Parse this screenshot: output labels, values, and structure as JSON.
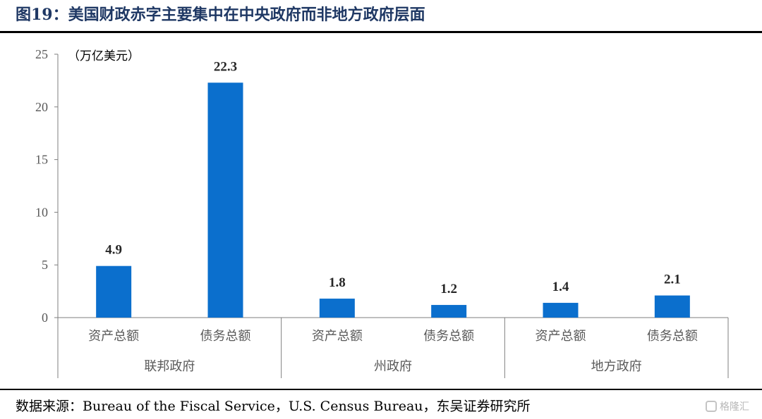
{
  "figure": {
    "title": "图19：美国财政赤字主要集中在中央政府而非地方政府层面",
    "source": "数据来源：Bureau of the Fiscal Service，U.S. Census Bureau，东吴证券研究所",
    "watermark": "格隆汇"
  },
  "chart_data": {
    "type": "bar",
    "unit_label": "（万亿美元）",
    "ylim": [
      0,
      25
    ],
    "yticks": [
      "0",
      "5",
      "10",
      "15",
      "20",
      "25"
    ],
    "groups": [
      {
        "label": "联邦政府",
        "categories": [
          "资产总额",
          "债务总额"
        ],
        "values": [
          4.9,
          22.3
        ],
        "value_labels": [
          "4.9",
          "22.3"
        ]
      },
      {
        "label": "州政府",
        "categories": [
          "资产总额",
          "债务总额"
        ],
        "values": [
          1.8,
          1.2
        ],
        "value_labels": [
          "1.8",
          "1.2"
        ]
      },
      {
        "label": "地方政府",
        "categories": [
          "资产总额",
          "债务总额"
        ],
        "values": [
          1.4,
          2.1
        ],
        "value_labels": [
          "1.4",
          "2.1"
        ]
      }
    ],
    "bar_color": "#0b6fcd",
    "legend": "none",
    "grid": false
  }
}
